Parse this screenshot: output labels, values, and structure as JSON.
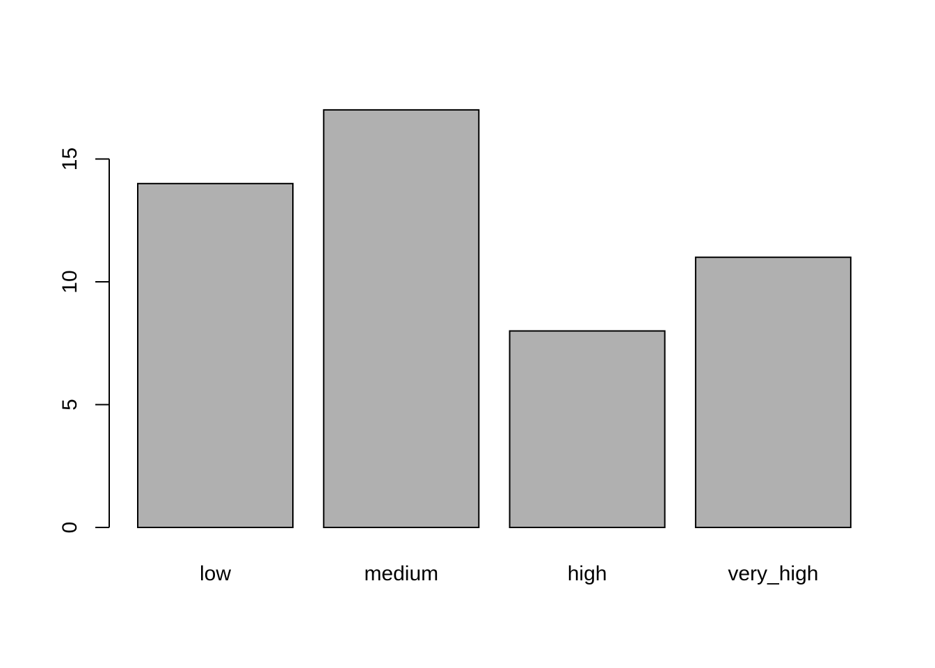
{
  "chart_data": {
    "type": "bar",
    "categories": [
      "low",
      "medium",
      "high",
      "very_high"
    ],
    "values": [
      14,
      17,
      8,
      11
    ],
    "title": "",
    "xlabel": "",
    "ylabel": "",
    "ylim": [
      0,
      17
    ],
    "y_ticks": [
      0,
      5,
      10,
      15
    ],
    "y_tick_labels": [
      "0",
      "5",
      "10",
      "15"
    ],
    "grid": false,
    "legend": "none",
    "bar_fill": "#b0b0b0",
    "bar_stroke": "#000000"
  }
}
